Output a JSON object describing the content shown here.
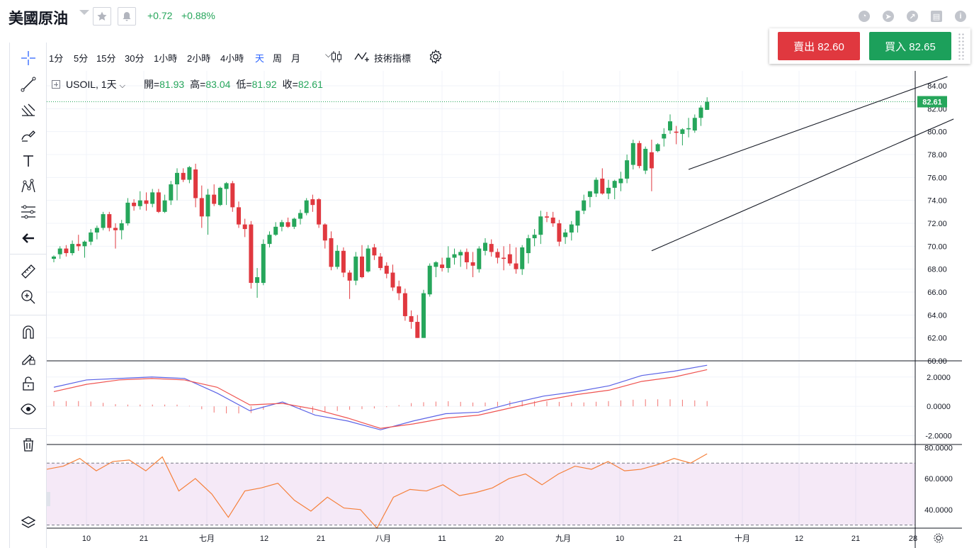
{
  "header": {
    "title": "美國原油",
    "change_abs": "+0.72",
    "change_pct": "+0.88%",
    "icons": [
      "favorite-icon",
      "alert-icon",
      "pie-chart-icon",
      "compass-icon",
      "calendar-icon",
      "info-icon"
    ]
  },
  "trade": {
    "sell_label": "賣出 82.60",
    "buy_label": "買入 82.65",
    "sell_color": "#e0383f",
    "buy_color": "#1ca05b"
  },
  "toolbar": {
    "intervals": [
      "1分",
      "5分",
      "15分",
      "30分",
      "1小時",
      "2小時",
      "4小時",
      "天",
      "周",
      "月"
    ],
    "active_interval": "天",
    "indicators_label": "技術指標"
  },
  "legend": {
    "symbol": "USOIL, 1天",
    "open_label": "開=",
    "open": "81.93",
    "high_label": "高=",
    "high": "83.04",
    "low_label": "低=",
    "low": "81.92",
    "close_label": "收=",
    "close": "82.61"
  },
  "sidebar": {
    "tools": [
      "crosshair-icon",
      "trend-line-icon",
      "pitchfork-icon",
      "brush-icon",
      "text-icon",
      "pattern-icon",
      "fib-icon",
      "back-arrow-icon",
      "ruler-icon",
      "zoom-in-icon",
      "magnet-icon",
      "lock-drawing-icon",
      "unlock-icon",
      "eye-icon",
      "trash-icon",
      "layers-icon"
    ]
  },
  "chart_data": [
    {
      "type": "candlestick",
      "title": "USOIL, 1天",
      "price_axis_ticks": [
        "84.00",
        "82.00",
        "80.00",
        "78.00",
        "76.00",
        "74.00",
        "72.00",
        "70.00",
        "68.00",
        "66.00",
        "64.00",
        "62.00",
        "60.00"
      ],
      "ylim": [
        60,
        85.3
      ],
      "last_price": "82.61",
      "x_tick_labels": [
        "10",
        "21",
        "七月",
        "12",
        "21",
        "八月",
        "11",
        "20",
        "九月",
        "10",
        "21",
        "十月",
        "12",
        "21",
        "28"
      ],
      "up_color": "#26a65b",
      "down_color": "#e0383f",
      "candles": [
        [
          68.9,
          69.2,
          68.6,
          69.1
        ],
        [
          69.3,
          70.0,
          68.9,
          69.8
        ],
        [
          69.8,
          70.1,
          69.1,
          69.4
        ],
        [
          69.4,
          70.5,
          69.2,
          70.2
        ],
        [
          70.2,
          71.0,
          69.6,
          70.0
        ],
        [
          70.0,
          70.5,
          69.0,
          70.4
        ],
        [
          70.4,
          71.5,
          70.1,
          71.2
        ],
        [
          71.2,
          71.8,
          70.6,
          71.6
        ],
        [
          71.6,
          73.0,
          71.4,
          72.8
        ],
        [
          72.8,
          73.0,
          71.3,
          71.6
        ],
        [
          71.6,
          72.0,
          69.8,
          71.4
        ],
        [
          71.4,
          72.3,
          70.6,
          72.0
        ],
        [
          72.0,
          74.2,
          71.8,
          73.8
        ],
        [
          73.8,
          74.1,
          73.1,
          73.5
        ],
        [
          73.5,
          74.8,
          73.2,
          74.0
        ],
        [
          74.0,
          74.7,
          73.1,
          73.7
        ],
        [
          73.7,
          75.0,
          73.4,
          74.7
        ],
        [
          74.7,
          75.0,
          72.9,
          73.0
        ],
        [
          73.0,
          74.5,
          72.9,
          74.0
        ],
        [
          74.0,
          75.7,
          73.6,
          75.4
        ],
        [
          75.4,
          76.8,
          74.0,
          76.4
        ],
        [
          76.4,
          76.8,
          75.6,
          75.8
        ],
        [
          75.8,
          77.0,
          75.5,
          76.9
        ],
        [
          76.7,
          77.2,
          73.4,
          74.2
        ],
        [
          74.2,
          75.3,
          71.6,
          72.6
        ],
        [
          72.6,
          75.0,
          71.0,
          74.5
        ],
        [
          74.5,
          75.4,
          73.5,
          73.7
        ],
        [
          73.6,
          75.2,
          73.5,
          75.1
        ],
        [
          75.0,
          75.6,
          73.6,
          75.5
        ],
        [
          75.5,
          75.7,
          73.0,
          73.4
        ],
        [
          73.4,
          73.9,
          71.6,
          71.9
        ],
        [
          71.9,
          72.4,
          70.8,
          71.5
        ],
        [
          71.9,
          72.2,
          66.3,
          66.8
        ],
        [
          66.8,
          68.1,
          65.5,
          67.3
        ],
        [
          66.8,
          70.6,
          66.6,
          70.2
        ],
        [
          70.2,
          71.3,
          69.9,
          71.0
        ],
        [
          71.0,
          72.1,
          70.9,
          71.7
        ],
        [
          71.7,
          72.3,
          71.3,
          72.1
        ],
        [
          72.1,
          72.5,
          71.6,
          71.7
        ],
        [
          71.7,
          72.5,
          71.5,
          72.4
        ],
        [
          72.4,
          73.2,
          71.9,
          72.9
        ],
        [
          72.9,
          74.2,
          72.7,
          74.0
        ],
        [
          74.1,
          74.5,
          73.0,
          73.6
        ],
        [
          74.1,
          74.2,
          71.6,
          71.9
        ],
        [
          71.9,
          72.0,
          69.8,
          70.5
        ],
        [
          70.7,
          71.3,
          67.9,
          68.2
        ],
        [
          68.2,
          70.1,
          68.0,
          69.6
        ],
        [
          69.6,
          69.9,
          67.3,
          67.7
        ],
        [
          67.7,
          67.9,
          65.4,
          67.0
        ],
        [
          67.0,
          69.5,
          66.6,
          69.1
        ],
        [
          69.1,
          70.1,
          67.2,
          67.3
        ],
        [
          67.8,
          70.1,
          67.7,
          69.8
        ],
        [
          69.9,
          70.2,
          68.8,
          69.2
        ],
        [
          69.1,
          69.4,
          67.9,
          68.1
        ],
        [
          68.3,
          68.6,
          67.2,
          67.6
        ],
        [
          67.7,
          68.4,
          66.1,
          66.4
        ],
        [
          66.5,
          67.0,
          65.3,
          65.9
        ],
        [
          65.9,
          66.3,
          63.5,
          63.9
        ],
        [
          63.9,
          64.4,
          62.8,
          63.4
        ],
        [
          63.4,
          64.0,
          62.0,
          62.0
        ],
        [
          62.0,
          66.2,
          62.0,
          65.9
        ],
        [
          65.8,
          68.5,
          65.6,
          68.3
        ],
        [
          68.2,
          68.7,
          67.3,
          68.6
        ],
        [
          68.4,
          69.0,
          67.8,
          68.1
        ],
        [
          68.1,
          70.0,
          67.7,
          69.0
        ],
        [
          69.0,
          69.8,
          68.4,
          69.3
        ],
        [
          69.2,
          69.7,
          68.2,
          69.5
        ],
        [
          69.5,
          69.8,
          68.0,
          68.6
        ],
        [
          68.6,
          69.5,
          67.3,
          68.3
        ],
        [
          68.0,
          70.0,
          67.7,
          69.8
        ],
        [
          69.6,
          70.7,
          69.2,
          70.3
        ],
        [
          70.2,
          70.6,
          69.1,
          69.5
        ],
        [
          69.5,
          69.8,
          68.5,
          69.0
        ],
        [
          69.0,
          70.0,
          67.9,
          68.9
        ],
        [
          69.3,
          70.2,
          68.3,
          68.5
        ],
        [
          68.5,
          69.9,
          67.6,
          68.0
        ],
        [
          68.0,
          70.1,
          67.5,
          69.9
        ],
        [
          69.4,
          71.0,
          68.5,
          70.7
        ],
        [
          70.7,
          71.5,
          70.0,
          71.0
        ],
        [
          71.0,
          73.1,
          70.2,
          72.6
        ],
        [
          72.6,
          73.0,
          72.1,
          72.5
        ],
        [
          72.5,
          73.0,
          71.7,
          72.0
        ],
        [
          72.0,
          72.3,
          70.0,
          70.4
        ],
        [
          70.8,
          71.5,
          70.2,
          71.2
        ],
        [
          71.2,
          72.2,
          70.5,
          71.9
        ],
        [
          71.8,
          73.0,
          71.2,
          73.1
        ],
        [
          73.1,
          74.5,
          72.8,
          74.0
        ],
        [
          74.3,
          74.8,
          73.4,
          74.8
        ],
        [
          74.6,
          76.0,
          74.3,
          75.8
        ],
        [
          75.9,
          76.8,
          74.5,
          74.6
        ],
        [
          74.6,
          75.8,
          74.1,
          75.1
        ],
        [
          75.1,
          75.8,
          74.1,
          75.7
        ],
        [
          75.5,
          76.5,
          74.8,
          75.9
        ],
        [
          75.9,
          78.0,
          75.5,
          77.5
        ],
        [
          77.1,
          79.3,
          76.7,
          79.0
        ],
        [
          79.0,
          79.2,
          76.8,
          77.0
        ],
        [
          76.6,
          78.7,
          76.3,
          78.5
        ],
        [
          78.2,
          79.3,
          74.8,
          76.8
        ],
        [
          78.3,
          79.0,
          78.2,
          78.9
        ],
        [
          79.4,
          80.3,
          78.7,
          79.8
        ],
        [
          80.1,
          81.5,
          79.8,
          80.9
        ],
        [
          80.0,
          80.5,
          78.9,
          79.9
        ],
        [
          79.8,
          80.3,
          78.8,
          80.2
        ],
        [
          80.2,
          81.2,
          79.5,
          80.3
        ],
        [
          80.1,
          81.5,
          79.9,
          81.2
        ],
        [
          81.2,
          82.3,
          80.5,
          82.1
        ],
        [
          81.9,
          83.0,
          81.9,
          82.6
        ]
      ],
      "trend_channel": {
        "upper": [
          [
            53,
            76.7
          ],
          [
            95,
            84.8
          ]
        ],
        "lower": [
          [
            47,
            69.6
          ],
          [
            96,
            81.1
          ]
        ]
      }
    },
    {
      "type": "line",
      "title": "",
      "ylim": [
        -2.6,
        3.1
      ],
      "price_axis_ticks": [
        "2.0000",
        "0.0000",
        "-2.0000"
      ],
      "series": [
        {
          "color": "#5b63e6",
          "values": [
            1.3,
            1.8,
            1.9,
            2.0,
            1.9,
            0.9,
            -0.3,
            0.3,
            -0.6,
            -1.0,
            -1.6,
            -1.0,
            -0.5,
            -0.4,
            0.2,
            0.7,
            1.0,
            1.4,
            2.1,
            2.4,
            2.8
          ]
        },
        {
          "color": "#ef5350",
          "values": [
            1.0,
            1.5,
            1.8,
            1.9,
            1.8,
            1.3,
            0.1,
            0.2,
            -0.2,
            -0.8,
            -1.5,
            -1.2,
            -0.8,
            -0.6,
            -0.1,
            0.4,
            0.8,
            1.1,
            1.7,
            2.0,
            2.5
          ]
        }
      ]
    },
    {
      "type": "line",
      "title": "",
      "ylim": [
        28,
        82
      ],
      "price_axis_ticks": [
        "80.0000",
        "60.0000",
        "40.0000"
      ],
      "band": [
        30,
        70
      ],
      "series": [
        {
          "color": "#f5803b",
          "values": [
            66,
            68,
            73,
            65,
            71,
            72,
            65,
            74,
            52,
            60,
            50,
            35,
            52,
            54,
            57,
            46,
            39,
            48,
            41,
            40,
            28,
            48,
            53,
            52,
            56,
            49,
            51,
            54,
            60,
            63,
            56,
            63,
            68,
            66,
            71,
            65,
            66,
            69,
            73,
            70,
            76
          ]
        }
      ]
    }
  ]
}
